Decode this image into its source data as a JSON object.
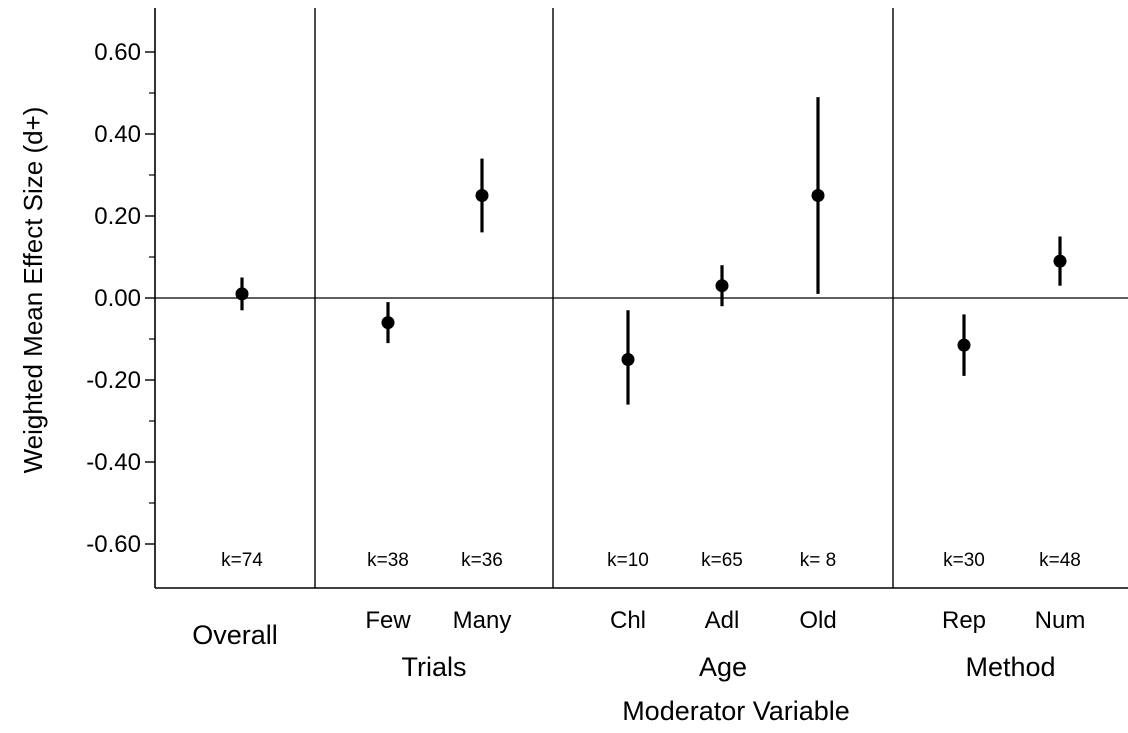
{
  "chart_data": {
    "type": "scatter",
    "title": "",
    "xlabel": "Moderator Variable",
    "ylabel": "Weighted Mean Effect Size (d+)",
    "ylim": [
      -0.7,
      0.7
    ],
    "yticks": [
      {
        "value": 0.6,
        "label": "0.60"
      },
      {
        "value": 0.4,
        "label": "0.40"
      },
      {
        "value": 0.2,
        "label": "0.20"
      },
      {
        "value": 0.0,
        "label": "0.00"
      },
      {
        "value": -0.2,
        "label": "-0.20"
      },
      {
        "value": -0.4,
        "label": "-0.40"
      },
      {
        "value": -0.6,
        "label": "-0.60"
      }
    ],
    "yminor": [
      0.5,
      0.3,
      0.1,
      -0.1,
      -0.3,
      -0.5
    ],
    "reference_line": 0.0,
    "grid": false,
    "groups": [
      {
        "name": "Overall",
        "points": [
          {
            "category": "",
            "value": 0.01,
            "ci": [
              -0.03,
              0.05
            ],
            "k": "k=74"
          }
        ]
      },
      {
        "name": "Trials",
        "points": [
          {
            "category": "Few",
            "value": -0.06,
            "ci": [
              -0.11,
              -0.01
            ],
            "k": "k=38"
          },
          {
            "category": "Many",
            "value": 0.25,
            "ci": [
              0.16,
              0.34
            ],
            "k": "k=36"
          }
        ]
      },
      {
        "name": "Age",
        "points": [
          {
            "category": "Chl",
            "value": -0.15,
            "ci": [
              -0.26,
              -0.03
            ],
            "k": "k=10"
          },
          {
            "category": "Adl",
            "value": 0.03,
            "ci": [
              -0.02,
              0.08
            ],
            "k": "k=65"
          },
          {
            "category": "Old",
            "value": 0.25,
            "ci": [
              0.01,
              0.49
            ],
            "k": "k= 8"
          }
        ]
      },
      {
        "name": "Method",
        "points": [
          {
            "category": "Rep",
            "value": -0.115,
            "ci": [
              -0.19,
              -0.04
            ],
            "k": "k=30"
          },
          {
            "category": "Num",
            "value": 0.09,
            "ci": [
              0.03,
              0.15
            ],
            "k": "k=48"
          }
        ]
      }
    ]
  }
}
